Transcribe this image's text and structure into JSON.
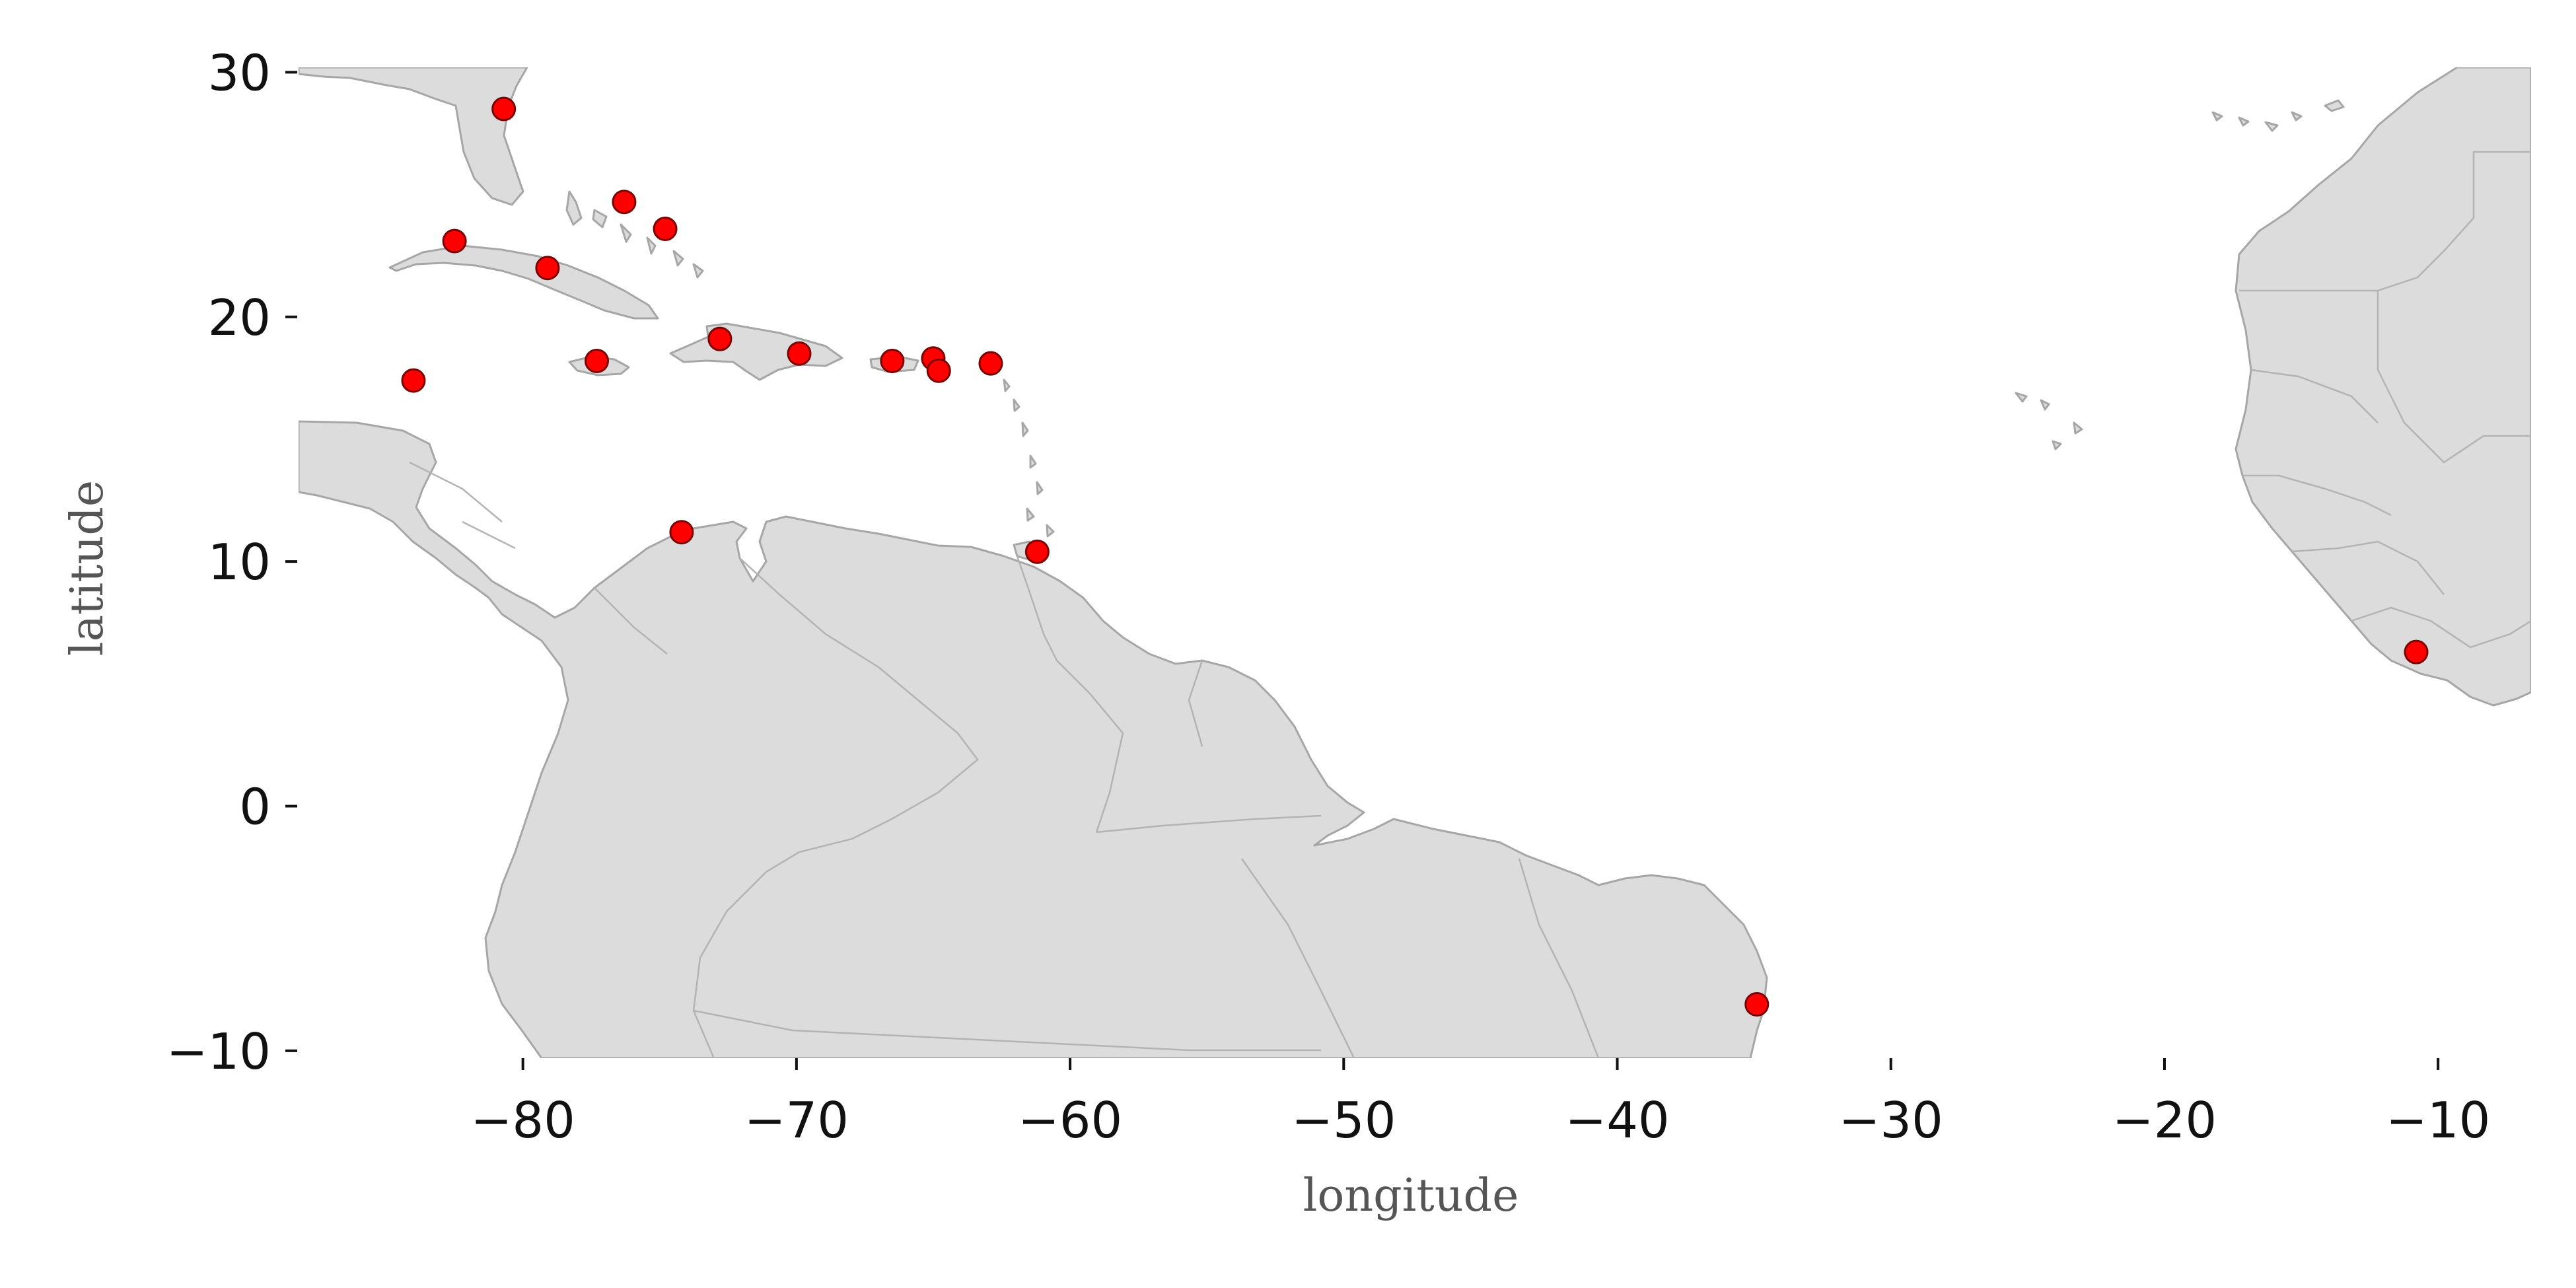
{
  "chart_data": {
    "type": "scatter",
    "xlabel": "longitude",
    "ylabel": "latitude",
    "xlim": [
      -88.2,
      -6.6
    ],
    "ylim": [
      -10.3,
      30.2
    ],
    "x_ticks": [
      -80,
      -70,
      -60,
      -50,
      -40,
      -30,
      -20,
      -10
    ],
    "y_ticks": [
      -10,
      0,
      10,
      20,
      30
    ],
    "x_tick_labels": [
      "−80",
      "−70",
      "−60",
      "−50",
      "−40",
      "−30",
      "−20",
      "−10"
    ],
    "y_tick_labels": [
      "−10",
      "0",
      "10",
      "20",
      "30"
    ],
    "grid": false,
    "marker_color": "#ff0000",
    "land_color": "#dcdcdc",
    "points": [
      {
        "x": -80.7,
        "y": 28.5
      },
      {
        "x": -76.3,
        "y": 24.7
      },
      {
        "x": -74.8,
        "y": 23.6
      },
      {
        "x": -82.5,
        "y": 23.1
      },
      {
        "x": -79.1,
        "y": 22.0
      },
      {
        "x": -72.8,
        "y": 19.1
      },
      {
        "x": -69.9,
        "y": 18.5
      },
      {
        "x": -66.5,
        "y": 18.2
      },
      {
        "x": -65.0,
        "y": 18.3
      },
      {
        "x": -64.8,
        "y": 17.8
      },
      {
        "x": -62.9,
        "y": 18.1
      },
      {
        "x": -77.3,
        "y": 18.2
      },
      {
        "x": -84.0,
        "y": 17.4
      },
      {
        "x": -74.2,
        "y": 11.2
      },
      {
        "x": -61.2,
        "y": 10.4
      },
      {
        "x": -34.9,
        "y": -8.1
      },
      {
        "x": -10.8,
        "y": 6.3
      }
    ]
  }
}
